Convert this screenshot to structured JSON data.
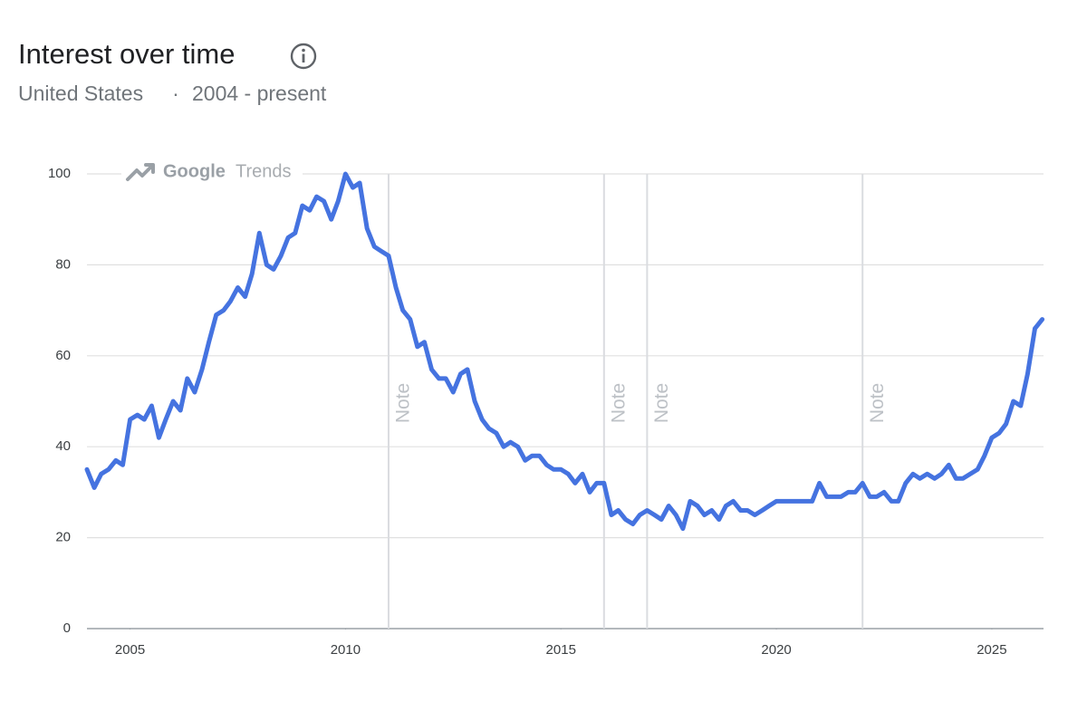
{
  "chart_data": {
    "type": "line",
    "title": "Interest over time",
    "subtitle": {
      "region": "United States",
      "separator": "·",
      "period": "2004 - present"
    },
    "watermark": {
      "brand": "Google",
      "product": "Trends"
    },
    "color": "#4573e0",
    "grid": true,
    "xlim": [
      2004,
      2026.2
    ],
    "xticks": [
      2005,
      2010,
      2015,
      2020,
      2025
    ],
    "ylim": [
      0,
      100
    ],
    "yticks": [
      0,
      20,
      40,
      60,
      80,
      100
    ],
    "notes": [
      {
        "x": 2011,
        "label": "Note"
      },
      {
        "x": 2016,
        "label": "Note"
      },
      {
        "x": 2017,
        "label": "Note"
      },
      {
        "x": 2022,
        "label": "Note"
      }
    ],
    "x": [
      2004,
      2004.17,
      2004.33,
      2004.5,
      2004.67,
      2004.83,
      2005,
      2005.17,
      2005.33,
      2005.5,
      2005.67,
      2005.83,
      2006,
      2006.17,
      2006.33,
      2006.5,
      2006.67,
      2006.83,
      2007,
      2007.17,
      2007.33,
      2007.5,
      2007.67,
      2007.83,
      2008,
      2008.17,
      2008.33,
      2008.5,
      2008.67,
      2008.83,
      2009,
      2009.17,
      2009.33,
      2009.5,
      2009.67,
      2009.83,
      2010,
      2010.17,
      2010.33,
      2010.5,
      2010.67,
      2010.83,
      2011,
      2011.17,
      2011.33,
      2011.5,
      2011.67,
      2011.83,
      2012,
      2012.17,
      2012.33,
      2012.5,
      2012.67,
      2012.83,
      2013,
      2013.17,
      2013.33,
      2013.5,
      2013.67,
      2013.83,
      2014,
      2014.17,
      2014.33,
      2014.5,
      2014.67,
      2014.83,
      2015,
      2015.17,
      2015.33,
      2015.5,
      2015.67,
      2015.83,
      2016,
      2016.17,
      2016.33,
      2016.5,
      2016.67,
      2016.83,
      2017,
      2017.17,
      2017.33,
      2017.5,
      2017.67,
      2017.83,
      2018,
      2018.17,
      2018.33,
      2018.5,
      2018.67,
      2018.83,
      2019,
      2019.17,
      2019.33,
      2019.5,
      2019.67,
      2019.83,
      2020,
      2020.17,
      2020.33,
      2020.5,
      2020.67,
      2020.83,
      2021,
      2021.17,
      2021.33,
      2021.5,
      2021.67,
      2021.83,
      2022,
      2022.17,
      2022.33,
      2022.5,
      2022.67,
      2022.83,
      2023,
      2023.17,
      2023.33,
      2023.5,
      2023.67,
      2023.83,
      2024,
      2024.17,
      2024.33,
      2024.5,
      2024.67,
      2024.83,
      2025,
      2025.17,
      2025.33,
      2025.5,
      2025.67,
      2025.83,
      2026,
      2026.17
    ],
    "values": [
      35,
      31,
      34,
      35,
      37,
      36,
      46,
      47,
      46,
      49,
      42,
      46,
      50,
      48,
      55,
      52,
      57,
      63,
      69,
      70,
      72,
      75,
      73,
      78,
      87,
      80,
      79,
      82,
      86,
      87,
      93,
      92,
      95,
      94,
      90,
      94,
      100,
      97,
      98,
      88,
      84,
      83,
      82,
      75,
      70,
      68,
      62,
      63,
      57,
      55,
      55,
      52,
      56,
      57,
      50,
      46,
      44,
      43,
      40,
      41,
      40,
      37,
      38,
      38,
      36,
      35,
      35,
      34,
      32,
      34,
      30,
      32,
      32,
      25,
      26,
      24,
      23,
      25,
      26,
      25,
      24,
      27,
      25,
      22,
      28,
      27,
      25,
      26,
      24,
      27,
      28,
      26,
      26,
      25,
      26,
      27,
      28,
      28,
      28,
      28,
      28,
      28,
      32,
      29,
      29,
      29,
      30,
      30,
      32,
      29,
      29,
      30,
      28,
      28,
      32,
      34,
      33,
      34,
      33,
      34,
      36,
      33,
      33,
      34,
      35,
      38,
      42,
      43,
      45,
      50,
      49,
      56,
      66,
      68
    ]
  }
}
